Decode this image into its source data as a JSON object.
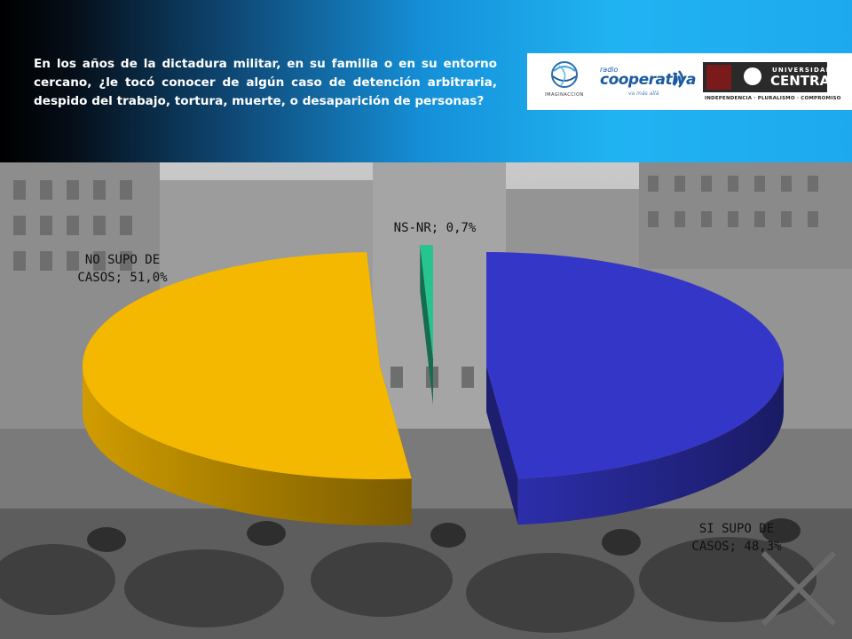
{
  "header": {
    "question": "En los años de la dictadura militar, en su familia o en su entorno cercano, ¿le tocó conocer de algún caso de detención arbitraria, despido del trabajo, tortura, muerte, o desaparición de personas?"
  },
  "logos": {
    "imaginaccion": {
      "icon": "globe-icon",
      "text": "IMAGINACCION"
    },
    "cooperativa": {
      "small": "radio",
      "main": "cooperativa",
      "tagline": "va más allá"
    },
    "universidad_central": {
      "top": "UNIVERSIDAD",
      "name": "CENTRAL",
      "motto": "INDEPENDENCIA · PLURALISMO · COMPROMISO"
    }
  },
  "colors": {
    "si": "#3436c8",
    "no": "#f5b800",
    "nsnr": "#27c48f",
    "header_dark": "#000000",
    "header_light": "#1ea9ee"
  },
  "chart_data": {
    "type": "pie",
    "style": "3d-exploded",
    "title": "",
    "slices": [
      {
        "label_line1": "SI SUPO DE",
        "label_line2": "CASOS; 48,3%",
        "value": 48.3,
        "color": "#3436c8"
      },
      {
        "label_line1": "NO SUPO DE",
        "label_line2": "CASOS; 51,0%",
        "value": 51.0,
        "color": "#f5b800"
      },
      {
        "label_line1": "NS-NR; 0,7%",
        "label_line2": "",
        "value": 0.7,
        "color": "#27c48f"
      }
    ]
  }
}
